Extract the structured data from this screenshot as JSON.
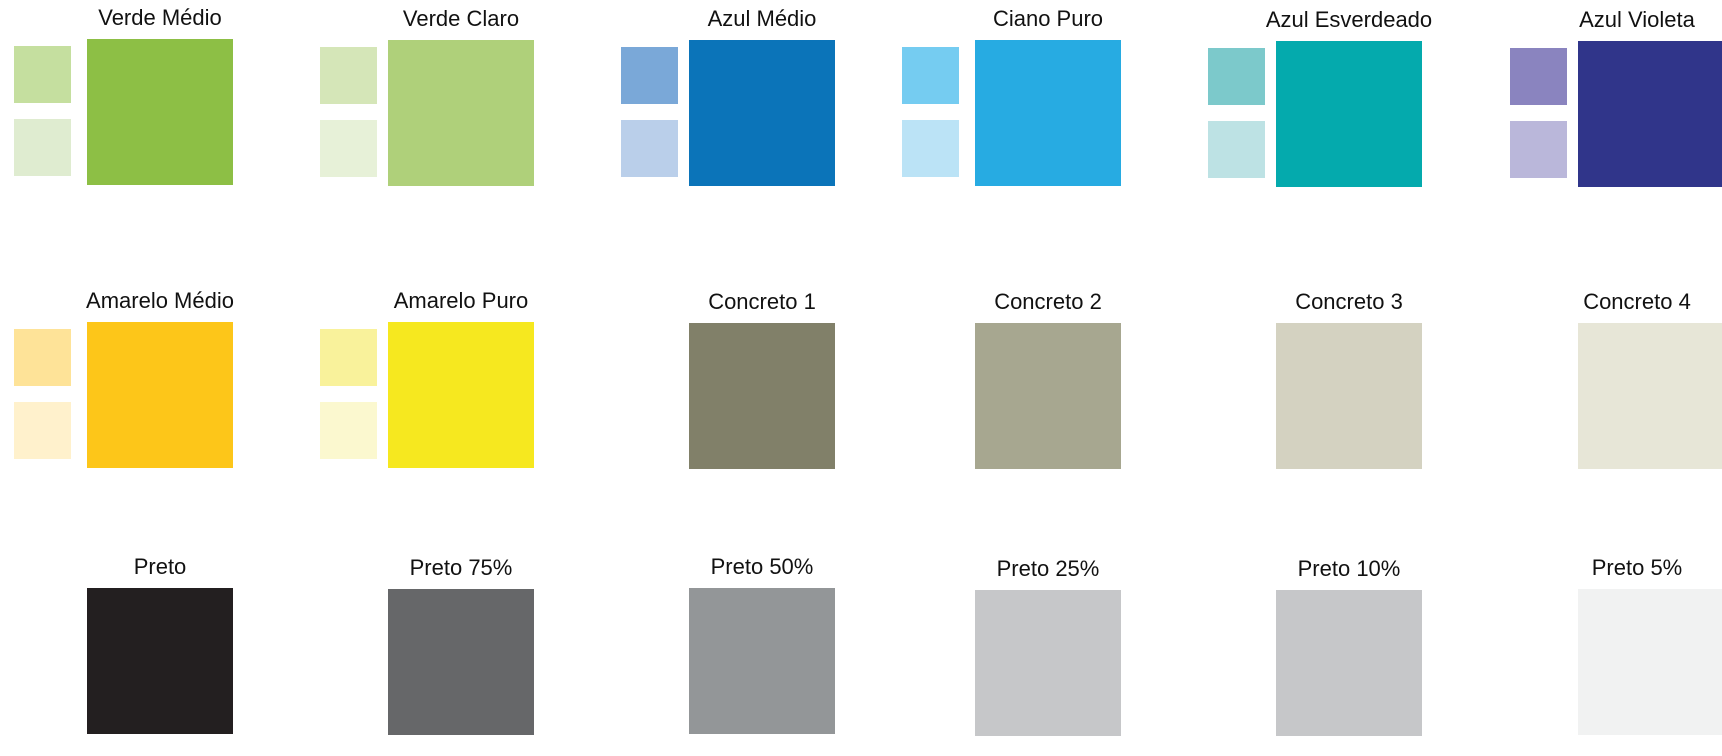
{
  "palette": {
    "row1": [
      {
        "name": "Verde Médio",
        "main": "#8dbf45",
        "tint1": "#c5df9f",
        "tint2": "#dfecd0"
      },
      {
        "name": "Verde Claro",
        "main": "#afd07a",
        "tint1": "#d5e6b8",
        "tint2": "#e7f1d8"
      },
      {
        "name": "Azul Médio",
        "main": "#0b74b9",
        "tint1": "#7aa8d8",
        "tint2": "#bacfea"
      },
      {
        "name": "Ciano Puro",
        "main": "#27abe2",
        "tint1": "#75ccf1",
        "tint2": "#bbe3f6"
      },
      {
        "name": "Azul Esverdeado",
        "main": "#04aaad",
        "tint1": "#7cc9cb",
        "tint2": "#bde2e4"
      },
      {
        "name": "Azul Violeta",
        "main": "#30358a",
        "tint1": "#8a84bf",
        "tint2": "#bab7da"
      }
    ],
    "row2": [
      {
        "name": "Amarelo Médio",
        "main": "#fdc619",
        "tint1": "#fee398",
        "tint2": "#fff1cc"
      },
      {
        "name": "Amarelo Puro",
        "main": "#f6e81f",
        "tint1": "#f9f29b",
        "tint2": "#fbf8cf"
      },
      {
        "name": "Concreto 1",
        "main": "#818069",
        "tint1": null,
        "tint2": null
      },
      {
        "name": "Concreto 2",
        "main": "#a7a790",
        "tint1": null,
        "tint2": null
      },
      {
        "name": "Concreto 3",
        "main": "#d4d2c1",
        "tint1": null,
        "tint2": null
      },
      {
        "name": "Concreto 4",
        "main": "#e7e6d7",
        "tint1": null,
        "tint2": null
      }
    ],
    "row3": [
      {
        "name": "Preto",
        "main": "#231f20"
      },
      {
        "name": "Preto 75%",
        "main": "#666769"
      },
      {
        "name": "Preto 50%",
        "main": "#939698"
      },
      {
        "name": "Preto 25%",
        "main": "#c6c7c9"
      },
      {
        "name": "Preto 10%",
        "main": "#c6c7c9"
      },
      {
        "name": "Preto 5%",
        "main": "#f1f2f2"
      }
    ]
  }
}
